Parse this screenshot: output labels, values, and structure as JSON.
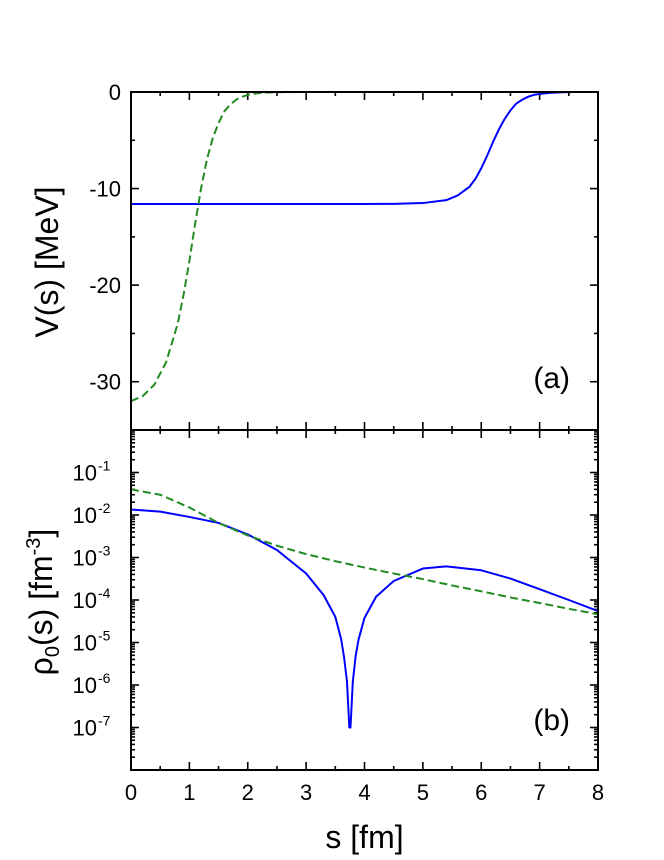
{
  "chart_data": [
    {
      "type": "line",
      "panel_label": "(a)",
      "xlabel": "s [fm]",
      "ylabel": "V(s) [MeV]",
      "xlim": [
        0,
        8
      ],
      "ylim": [
        -35,
        0
      ],
      "x_ticks": [
        0,
        1,
        2,
        3,
        4,
        5,
        6,
        7,
        8
      ],
      "y_ticks": [
        0,
        -10,
        -20,
        -30
      ],
      "y_tick_labels": [
        "0",
        "-10",
        "-20",
        "-30"
      ],
      "grid": false,
      "legend": "none",
      "series": [
        {
          "style": "solid",
          "color": "#0000ff",
          "x": [
            0,
            1,
            2,
            3,
            4,
            4.5,
            5,
            5.4,
            5.6,
            5.8,
            5.9,
            6.0,
            6.1,
            6.2,
            6.3,
            6.4,
            6.5,
            6.6,
            6.7,
            6.8,
            6.9,
            7.0,
            7.2,
            7.4,
            7.6,
            8.0
          ],
          "y": [
            -11.6,
            -11.6,
            -11.6,
            -11.6,
            -11.6,
            -11.58,
            -11.5,
            -11.2,
            -10.7,
            -9.8,
            -9.0,
            -7.9,
            -6.6,
            -5.2,
            -3.9,
            -2.8,
            -1.9,
            -1.2,
            -0.8,
            -0.5,
            -0.3,
            -0.2,
            -0.08,
            -0.03,
            0,
            0
          ]
        },
        {
          "style": "dashed",
          "color": "#228b22",
          "x": [
            0,
            0.2,
            0.4,
            0.6,
            0.8,
            0.9,
            1.0,
            1.1,
            1.2,
            1.3,
            1.4,
            1.5,
            1.6,
            1.7,
            1.8,
            1.9,
            2.0,
            2.1,
            2.2,
            2.4,
            2.6,
            3.0,
            4.0,
            8.0
          ],
          "y": [
            -32.0,
            -31.5,
            -30.3,
            -28.0,
            -24.0,
            -21.0,
            -17.5,
            -13.6,
            -10.0,
            -7.0,
            -4.8,
            -3.2,
            -2.0,
            -1.3,
            -0.8,
            -0.5,
            -0.3,
            -0.18,
            -0.1,
            -0.04,
            -0.015,
            0,
            0,
            0
          ]
        }
      ]
    },
    {
      "type": "line",
      "panel_label": "(b)",
      "xlabel": "s [fm]",
      "ylabel": "ρ0(s) [fm-3]",
      "ylabel_parts": {
        "main": "ρ",
        "sub": "0",
        "mid": "(s) [fm",
        "sup": "-3",
        "end": "]"
      },
      "xlim": [
        0,
        8
      ],
      "ylim": [
        1e-08,
        1
      ],
      "y_scale": "log",
      "x_ticks": [
        0,
        1,
        2,
        3,
        4,
        5,
        6,
        7,
        8
      ],
      "x_tick_labels": [
        "0",
        "1",
        "2",
        "3",
        "4",
        "5",
        "6",
        "7",
        "8"
      ],
      "y_ticks": [
        -1,
        -2,
        -3,
        -4,
        -5,
        -6,
        -7
      ],
      "y_tick_labels": [
        {
          "base": "10",
          "exp": "-1"
        },
        {
          "base": "10",
          "exp": "-2"
        },
        {
          "base": "10",
          "exp": "-3"
        },
        {
          "base": "10",
          "exp": "-4"
        },
        {
          "base": "10",
          "exp": "-5"
        },
        {
          "base": "10",
          "exp": "-6"
        },
        {
          "base": "10",
          "exp": "-7"
        }
      ],
      "grid": false,
      "legend": "none",
      "series": [
        {
          "style": "solid",
          "color": "#0000ff",
          "x": [
            0,
            0.5,
            1.0,
            1.5,
            2.0,
            2.5,
            3.0,
            3.3,
            3.5,
            3.6,
            3.65,
            3.7,
            3.74,
            3.76,
            3.8,
            3.85,
            3.9,
            4.0,
            4.2,
            4.5,
            5.0,
            5.4,
            6.0,
            6.5,
            7.0,
            7.5,
            8.0
          ],
          "y": [
            0.0135,
            0.012,
            0.009,
            0.0065,
            0.0035,
            0.0015,
            0.00042,
            0.00013,
            4e-05,
            1.2e-05,
            4.5e-06,
            1.2e-06,
            1e-07,
            1e-07,
            1.2e-06,
            5e-06,
            1.2e-05,
            3.8e-05,
            0.00012,
            0.00028,
            0.00055,
            0.00062,
            0.0005,
            0.00032,
            0.00018,
            0.0001,
            5.5e-05
          ]
        },
        {
          "style": "dashed",
          "color": "#228b22",
          "x": [
            0,
            0.5,
            1.0,
            1.5,
            2.0,
            2.5,
            3.0,
            3.5,
            4.0,
            4.5,
            5.0,
            5.5,
            6.0,
            6.5,
            7.0,
            7.5,
            8.0
          ],
          "y": [
            0.04,
            0.03,
            0.015,
            0.0065,
            0.0033,
            0.0019,
            0.0012,
            0.00082,
            0.00058,
            0.00042,
            0.00031,
            0.00022,
            0.00016,
            0.000115,
            8.5e-05,
            6.2e-05,
            4.6e-05
          ]
        }
      ]
    }
  ]
}
